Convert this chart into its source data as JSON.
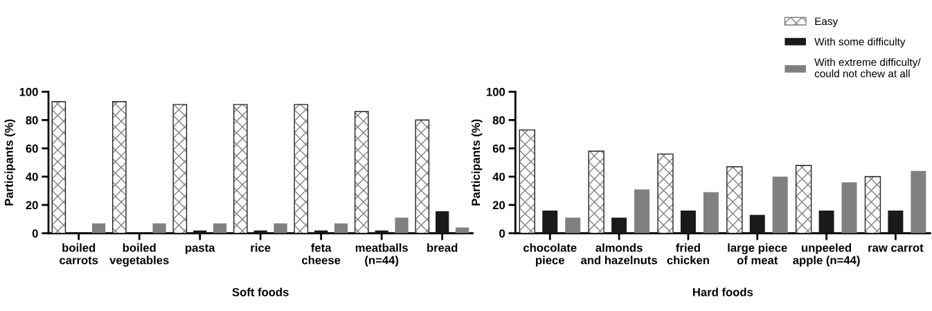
{
  "chart_data": [
    {
      "type": "bar",
      "xlabel": "Soft foods",
      "ylabel": "Participants (%)",
      "categories": [
        "boiled\ncarrots",
        "boiled\nvegetables",
        "pasta",
        "rice",
        "feta\ncheese",
        "meatballs\n(n=44)",
        "bread"
      ],
      "ylim": [
        0,
        100
      ],
      "yticks": [
        0,
        20,
        40,
        60,
        80,
        100
      ],
      "grid": false,
      "legend": false,
      "series": [
        {
          "color": "#808080",
          "values": [
            93,
            93,
            91,
            91,
            91,
            86,
            80
          ]
        },
        {
          "color": "#1a1a1a",
          "values": [
            0,
            0,
            2,
            2,
            2,
            2,
            15.5
          ]
        },
        {
          "color": "#808080",
          "values": [
            7,
            7,
            7,
            7,
            7,
            11,
            4
          ]
        }
      ]
    },
    {
      "type": "bar",
      "xlabel": "Hard foods",
      "ylabel": "Participants (%)",
      "categories": [
        "chocolate\npiece",
        "almonds\nand hazelnuts",
        "fried\nchicken",
        "large piece\nof meat",
        "unpeeled\napple (n=44)",
        "raw carrot"
      ],
      "ylim": [
        0,
        100
      ],
      "yticks": [
        0,
        20,
        40,
        60,
        80,
        100
      ],
      "grid": false,
      "legend": "top right",
      "series": [
        {
          "name": "Easy",
          "color": "#808080",
          "values": [
            73,
            58,
            56,
            47,
            48,
            40
          ]
        },
        {
          "name": "With some difficulty",
          "color": "#1a1a1a",
          "values": [
            16,
            11,
            16,
            13,
            16,
            16
          ]
        },
        {
          "name": "With extreme difficulty/\ncould not chew at all",
          "color": "#808080",
          "values": [
            11,
            31,
            29,
            40,
            36,
            44
          ]
        }
      ]
    }
  ]
}
